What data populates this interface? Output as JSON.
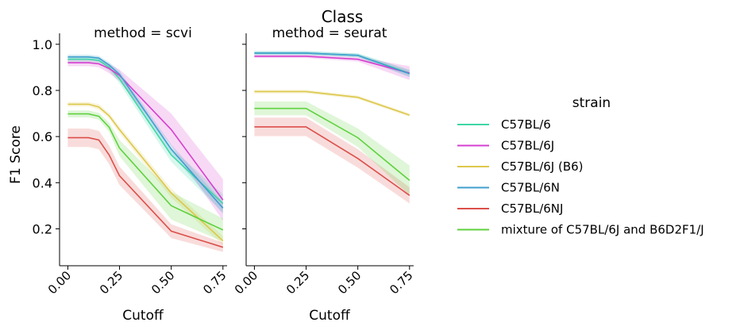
{
  "suptitle": "Class",
  "colors": {
    "C57BL/6": "#3ed6a6",
    "C57BL/6J": "#d63fcf",
    "C57BL/6J (B6)": "#dcc74a",
    "C57BL/6N": "#3f9fcf",
    "C57BL/6NJ": "#db4f4a",
    "mixture of C57BL/6J and B6D2F1/J": "#5fd13e"
  },
  "legend": {
    "title": "strain",
    "placement": "right",
    "items": [
      "C57BL/6",
      "C57BL/6J",
      "C57BL/6J (B6)",
      "C57BL/6N",
      "C57BL/6NJ",
      "mixture of C57BL/6J and B6D2F1/J"
    ]
  },
  "chart_data": [
    {
      "type": "line",
      "title": "method = scvi",
      "xlabel": "Cutoff",
      "ylabel": "F1 Score",
      "xlim": [
        -0.04,
        0.77
      ],
      "ylim": [
        0.04,
        1.02
      ],
      "xticks": [
        "0.00",
        "0.25",
        "0.50",
        "0.75"
      ],
      "yticks": [
        "0.2",
        "0.4",
        "0.6",
        "0.8",
        "1.0"
      ],
      "x": [
        0.0,
        0.05,
        0.1,
        0.15,
        0.2,
        0.25,
        0.5,
        0.75
      ],
      "series": [
        {
          "name": "C57BL/6",
          "values": [
            0.935,
            0.935,
            0.935,
            0.93,
            0.9,
            0.85,
            0.52,
            0.31
          ],
          "ci": [
            0.015,
            0.015,
            0.015,
            0.015,
            0.015,
            0.02,
            0.03,
            0.04
          ]
        },
        {
          "name": "C57BL/6J",
          "values": [
            0.92,
            0.92,
            0.92,
            0.915,
            0.895,
            0.865,
            0.63,
            0.325
          ],
          "ci": [
            0.015,
            0.015,
            0.015,
            0.015,
            0.02,
            0.025,
            0.07,
            0.09
          ]
        },
        {
          "name": "C57BL/6J (B6)",
          "values": [
            0.74,
            0.74,
            0.74,
            0.728,
            0.69,
            0.63,
            0.355,
            0.148
          ],
          "ci": [
            0.01,
            0.01,
            0.01,
            0.012,
            0.012,
            0.015,
            0.02,
            0.02
          ]
        },
        {
          "name": "C57BL/6N",
          "values": [
            0.945,
            0.945,
            0.945,
            0.94,
            0.91,
            0.87,
            0.545,
            0.29
          ],
          "ci": [
            0.01,
            0.01,
            0.01,
            0.01,
            0.012,
            0.015,
            0.02,
            0.025
          ]
        },
        {
          "name": "C57BL/6NJ",
          "values": [
            0.595,
            0.595,
            0.595,
            0.585,
            0.52,
            0.43,
            0.19,
            0.12
          ],
          "ci": [
            0.04,
            0.04,
            0.04,
            0.04,
            0.04,
            0.04,
            0.03,
            0.02
          ]
        },
        {
          "name": "mixture of C57BL/6J and B6D2F1/J",
          "values": [
            0.698,
            0.698,
            0.698,
            0.688,
            0.64,
            0.55,
            0.3,
            0.195
          ],
          "ci": [
            0.015,
            0.015,
            0.015,
            0.015,
            0.02,
            0.035,
            0.06,
            0.05
          ]
        }
      ]
    },
    {
      "type": "line",
      "title": "method = seurat",
      "xlabel": "Cutoff",
      "ylabel": "",
      "xlim": [
        -0.04,
        0.77
      ],
      "ylim": [
        0.04,
        1.02
      ],
      "xticks": [
        "0.00",
        "0.25",
        "0.50",
        "0.75"
      ],
      "yticks": [],
      "x": [
        0.0,
        0.25,
        0.5,
        0.75
      ],
      "series": [
        {
          "name": "C57BL/6",
          "values": [
            0.962,
            0.962,
            0.952,
            0.875
          ],
          "ci": [
            0.008,
            0.008,
            0.008,
            0.015
          ]
        },
        {
          "name": "C57BL/6J",
          "values": [
            0.948,
            0.948,
            0.935,
            0.875
          ],
          "ci": [
            0.008,
            0.008,
            0.01,
            0.03
          ]
        },
        {
          "name": "C57BL/6J (B6)",
          "values": [
            0.795,
            0.795,
            0.77,
            0.693
          ],
          "ci": [
            0.008,
            0.008,
            0.008,
            0.008
          ]
        },
        {
          "name": "C57BL/6N",
          "values": [
            0.962,
            0.962,
            0.952,
            0.872
          ],
          "ci": [
            0.008,
            0.008,
            0.008,
            0.015
          ]
        },
        {
          "name": "C57BL/6NJ",
          "values": [
            0.642,
            0.642,
            0.505,
            0.345
          ],
          "ci": [
            0.04,
            0.04,
            0.04,
            0.035
          ]
        },
        {
          "name": "mixture of C57BL/6J and B6D2F1/J",
          "values": [
            0.722,
            0.722,
            0.595,
            0.41
          ],
          "ci": [
            0.03,
            0.03,
            0.04,
            0.065
          ]
        }
      ]
    }
  ]
}
